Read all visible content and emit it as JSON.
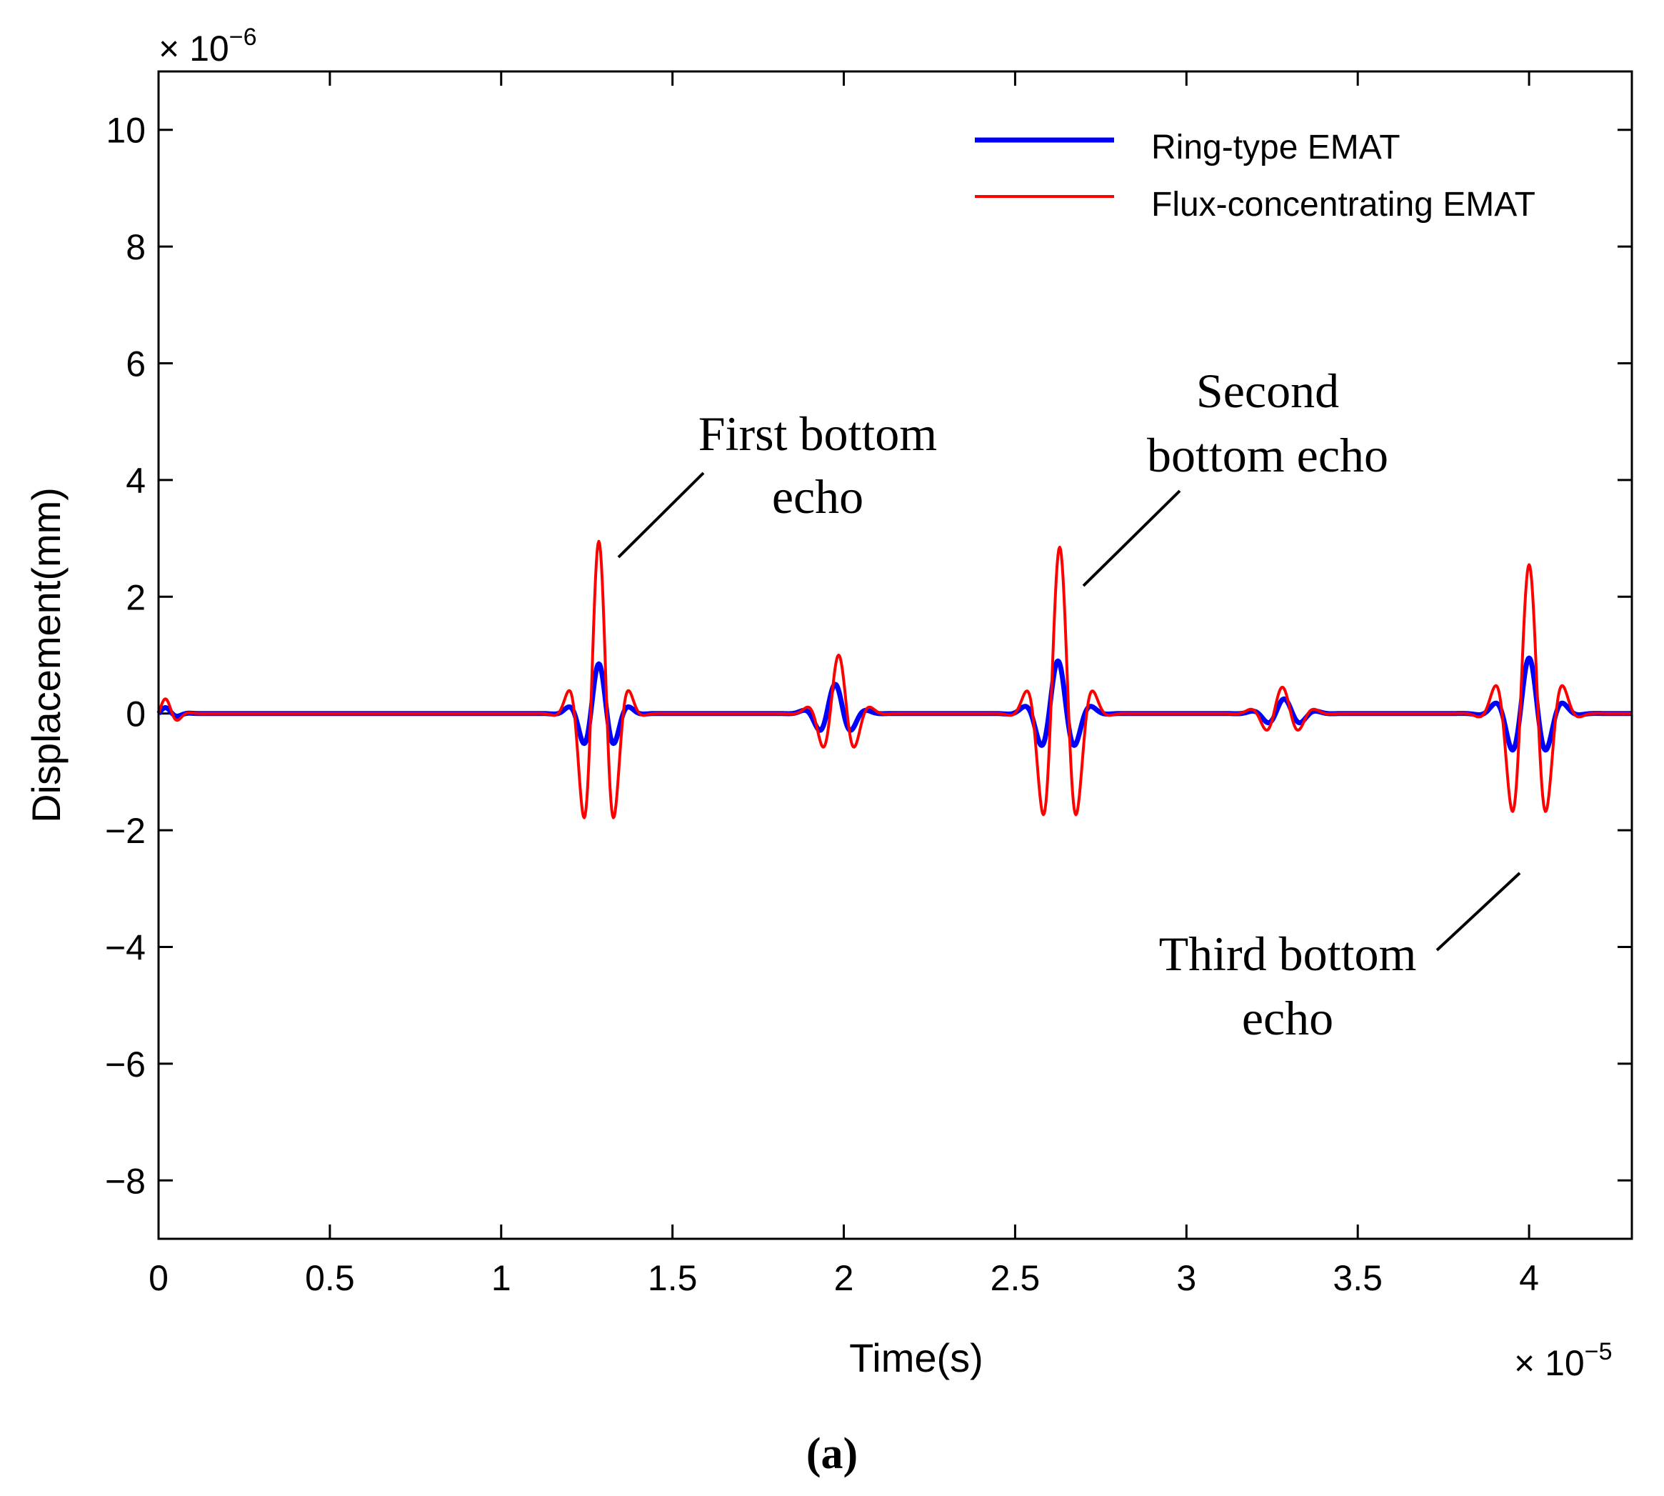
{
  "chart_data": {
    "type": "line",
    "title": "",
    "xlabel": "Time(s)",
    "ylabel": "Displacement(mm)",
    "x_multiplier": "× 10^-5",
    "y_multiplier": "× 10^-6",
    "xlim": [
      0,
      4.3
    ],
    "ylim": [
      -9,
      11
    ],
    "x_ticks": [
      0,
      0.5,
      1,
      1.5,
      2,
      2.5,
      3,
      3.5,
      4
    ],
    "y_ticks": [
      -8,
      -6,
      -4,
      -2,
      0,
      2,
      4,
      6,
      8,
      10
    ],
    "legend_position": "top-right",
    "grid": false,
    "series": [
      {
        "name": "Ring-type EMAT",
        "color": "#0000ff",
        "sample_step": 0.01,
        "x_range": [
          0,
          4.3
        ],
        "wave_packets": [
          {
            "center": 0.02,
            "amplitude": 0.1,
            "width": 0.03,
            "period": 0.08
          },
          {
            "center": 1.285,
            "amplitude": 0.85,
            "width": 0.045,
            "period": 0.095
          },
          {
            "center": 1.975,
            "amplitude": 0.5,
            "width": 0.045,
            "period": 0.1
          },
          {
            "center": 2.625,
            "amplitude": 0.9,
            "width": 0.05,
            "period": 0.105
          },
          {
            "center": 3.285,
            "amplitude": 0.25,
            "width": 0.05,
            "period": 0.1
          },
          {
            "center": 4.0,
            "amplitude": 0.95,
            "width": 0.055,
            "period": 0.105
          }
        ]
      },
      {
        "name": "Flux-concentrating EMAT",
        "color": "#ff0000",
        "sample_step": 0.01,
        "x_range": [
          0,
          4.3
        ],
        "wave_packets": [
          {
            "center": 0.02,
            "amplitude": 0.25,
            "width": 0.03,
            "period": 0.08
          },
          {
            "center": 1.285,
            "amplitude": 2.95,
            "width": 0.045,
            "period": 0.095
          },
          {
            "center": 1.985,
            "amplitude": 1.0,
            "width": 0.045,
            "period": 0.1
          },
          {
            "center": 2.63,
            "amplitude": 2.85,
            "width": 0.05,
            "period": 0.105
          },
          {
            "center": 3.28,
            "amplitude": 0.45,
            "width": 0.05,
            "period": 0.1
          },
          {
            "center": 4.0,
            "amplitude": 2.55,
            "width": 0.055,
            "period": 0.105
          }
        ]
      }
    ],
    "annotations": [
      {
        "lines": [
          "First bottom",
          "echo"
        ]
      },
      {
        "lines": [
          "Second",
          "bottom echo"
        ]
      },
      {
        "lines": [
          "Third bottom",
          "echo"
        ]
      }
    ],
    "caption": "(a)"
  }
}
